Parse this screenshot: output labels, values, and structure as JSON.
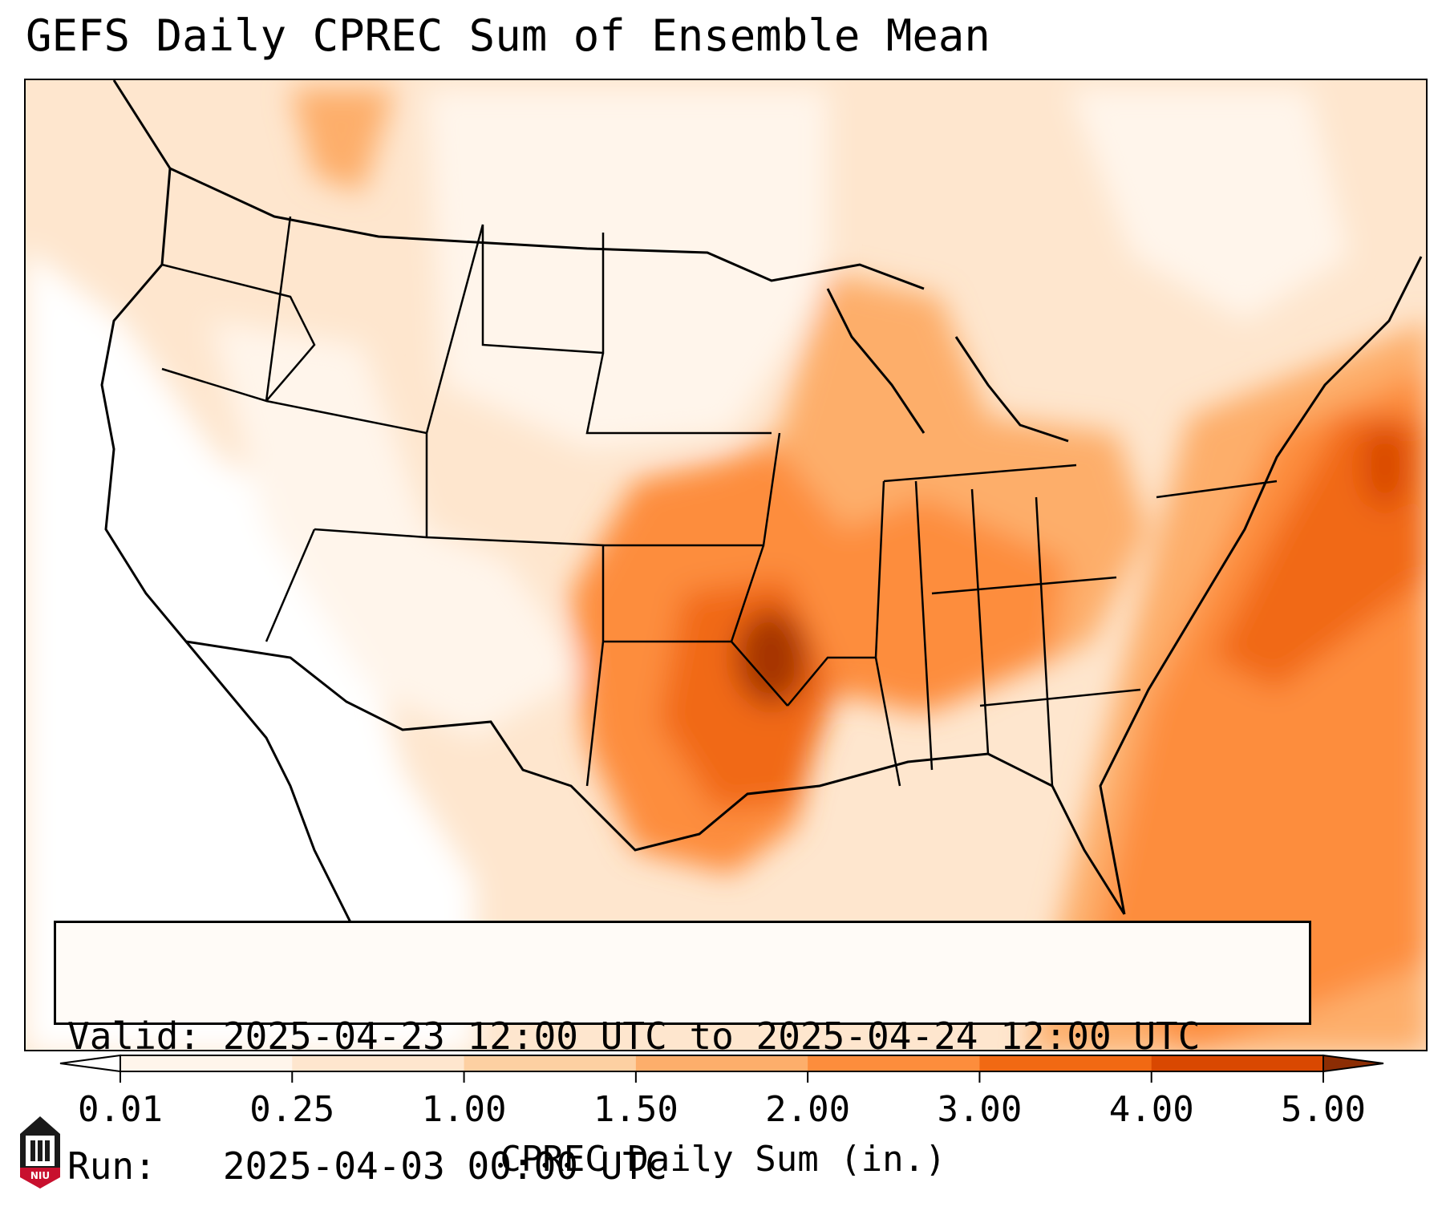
{
  "title": "GEFS Daily CPREC Sum of Ensemble Mean",
  "info": {
    "valid_label": "Valid:",
    "valid_value": "2025-04-23 12:00 UTC to 2025-04-24 12:00 UTC",
    "run_label": "Run:",
    "run_value": "2025-04-03 00:00 UTC"
  },
  "colorbar": {
    "title": "CPREC Daily Sum (in.)",
    "ticks": [
      "0.01",
      "0.25",
      "1.00",
      "1.50",
      "2.00",
      "3.00",
      "4.00",
      "5.00"
    ],
    "colors": [
      "#fff5eb",
      "#fee6ce",
      "#fdd0a2",
      "#fdae6b",
      "#fd8d3c",
      "#f16913",
      "#d94801",
      "#8c2d04"
    ],
    "extend": "both"
  },
  "map": {
    "projection": "Lambert Conformal",
    "region": "Contiguous United States",
    "max_region": "Southern Plains / Gulf Coast / Western Atlantic",
    "palette": {
      "none": "#ffffff",
      "trace": "#fff5eb",
      "light": "#fee6ce",
      "moderate": "#fdd0a2",
      "heavy": "#fd8d3c",
      "very_heavy": "#f16913",
      "extreme": "#8c2d04"
    }
  },
  "logo": {
    "name": "niu-logo",
    "text": "NIU",
    "color": "#c8102e"
  }
}
